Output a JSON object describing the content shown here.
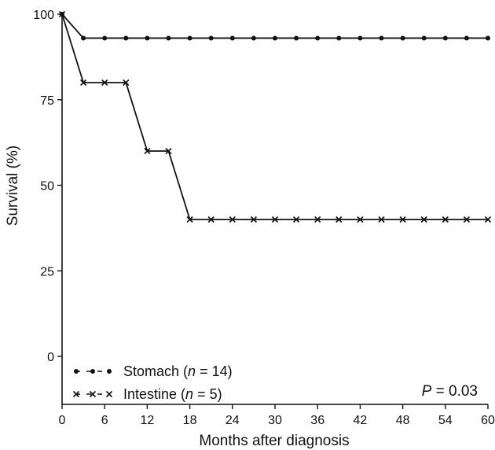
{
  "chart_data": {
    "type": "line",
    "xlabel": "Months after diagnosis",
    "ylabel": "Survival (%)",
    "xlim": [
      0,
      60
    ],
    "ylim": [
      0,
      100
    ],
    "xticks": [
      0,
      6,
      12,
      18,
      24,
      30,
      36,
      42,
      48,
      54,
      60
    ],
    "yticks": [
      0,
      25,
      50,
      75,
      100
    ],
    "grid": false,
    "legend_position": "bottom-left",
    "series": [
      {
        "name": "Stomach",
        "n_label": "n",
        "n_text": " = 14",
        "marker": "dot",
        "step": true,
        "x": [
          0,
          3,
          6,
          9,
          12,
          15,
          18,
          21,
          24,
          27,
          30,
          33,
          36,
          39,
          42,
          45,
          48,
          51,
          54,
          57,
          60
        ],
        "y": [
          100,
          93,
          93,
          93,
          93,
          93,
          93,
          93,
          93,
          93,
          93,
          93,
          93,
          93,
          93,
          93,
          93,
          93,
          93,
          93,
          93
        ]
      },
      {
        "name": "Intestine",
        "n_label": "n",
        "n_text": " = 5",
        "marker": "x",
        "step": true,
        "x": [
          0,
          3,
          6,
          9,
          12,
          15,
          18,
          21,
          24,
          27,
          30,
          33,
          36,
          39,
          42,
          45,
          48,
          51,
          54,
          57,
          60
        ],
        "y": [
          100,
          80,
          80,
          80,
          60,
          60,
          40,
          40,
          40,
          40,
          40,
          40,
          40,
          40,
          40,
          40,
          40,
          40,
          40,
          40,
          40
        ]
      }
    ],
    "annotation": {
      "label": "P",
      "text": " = 0.03"
    }
  }
}
